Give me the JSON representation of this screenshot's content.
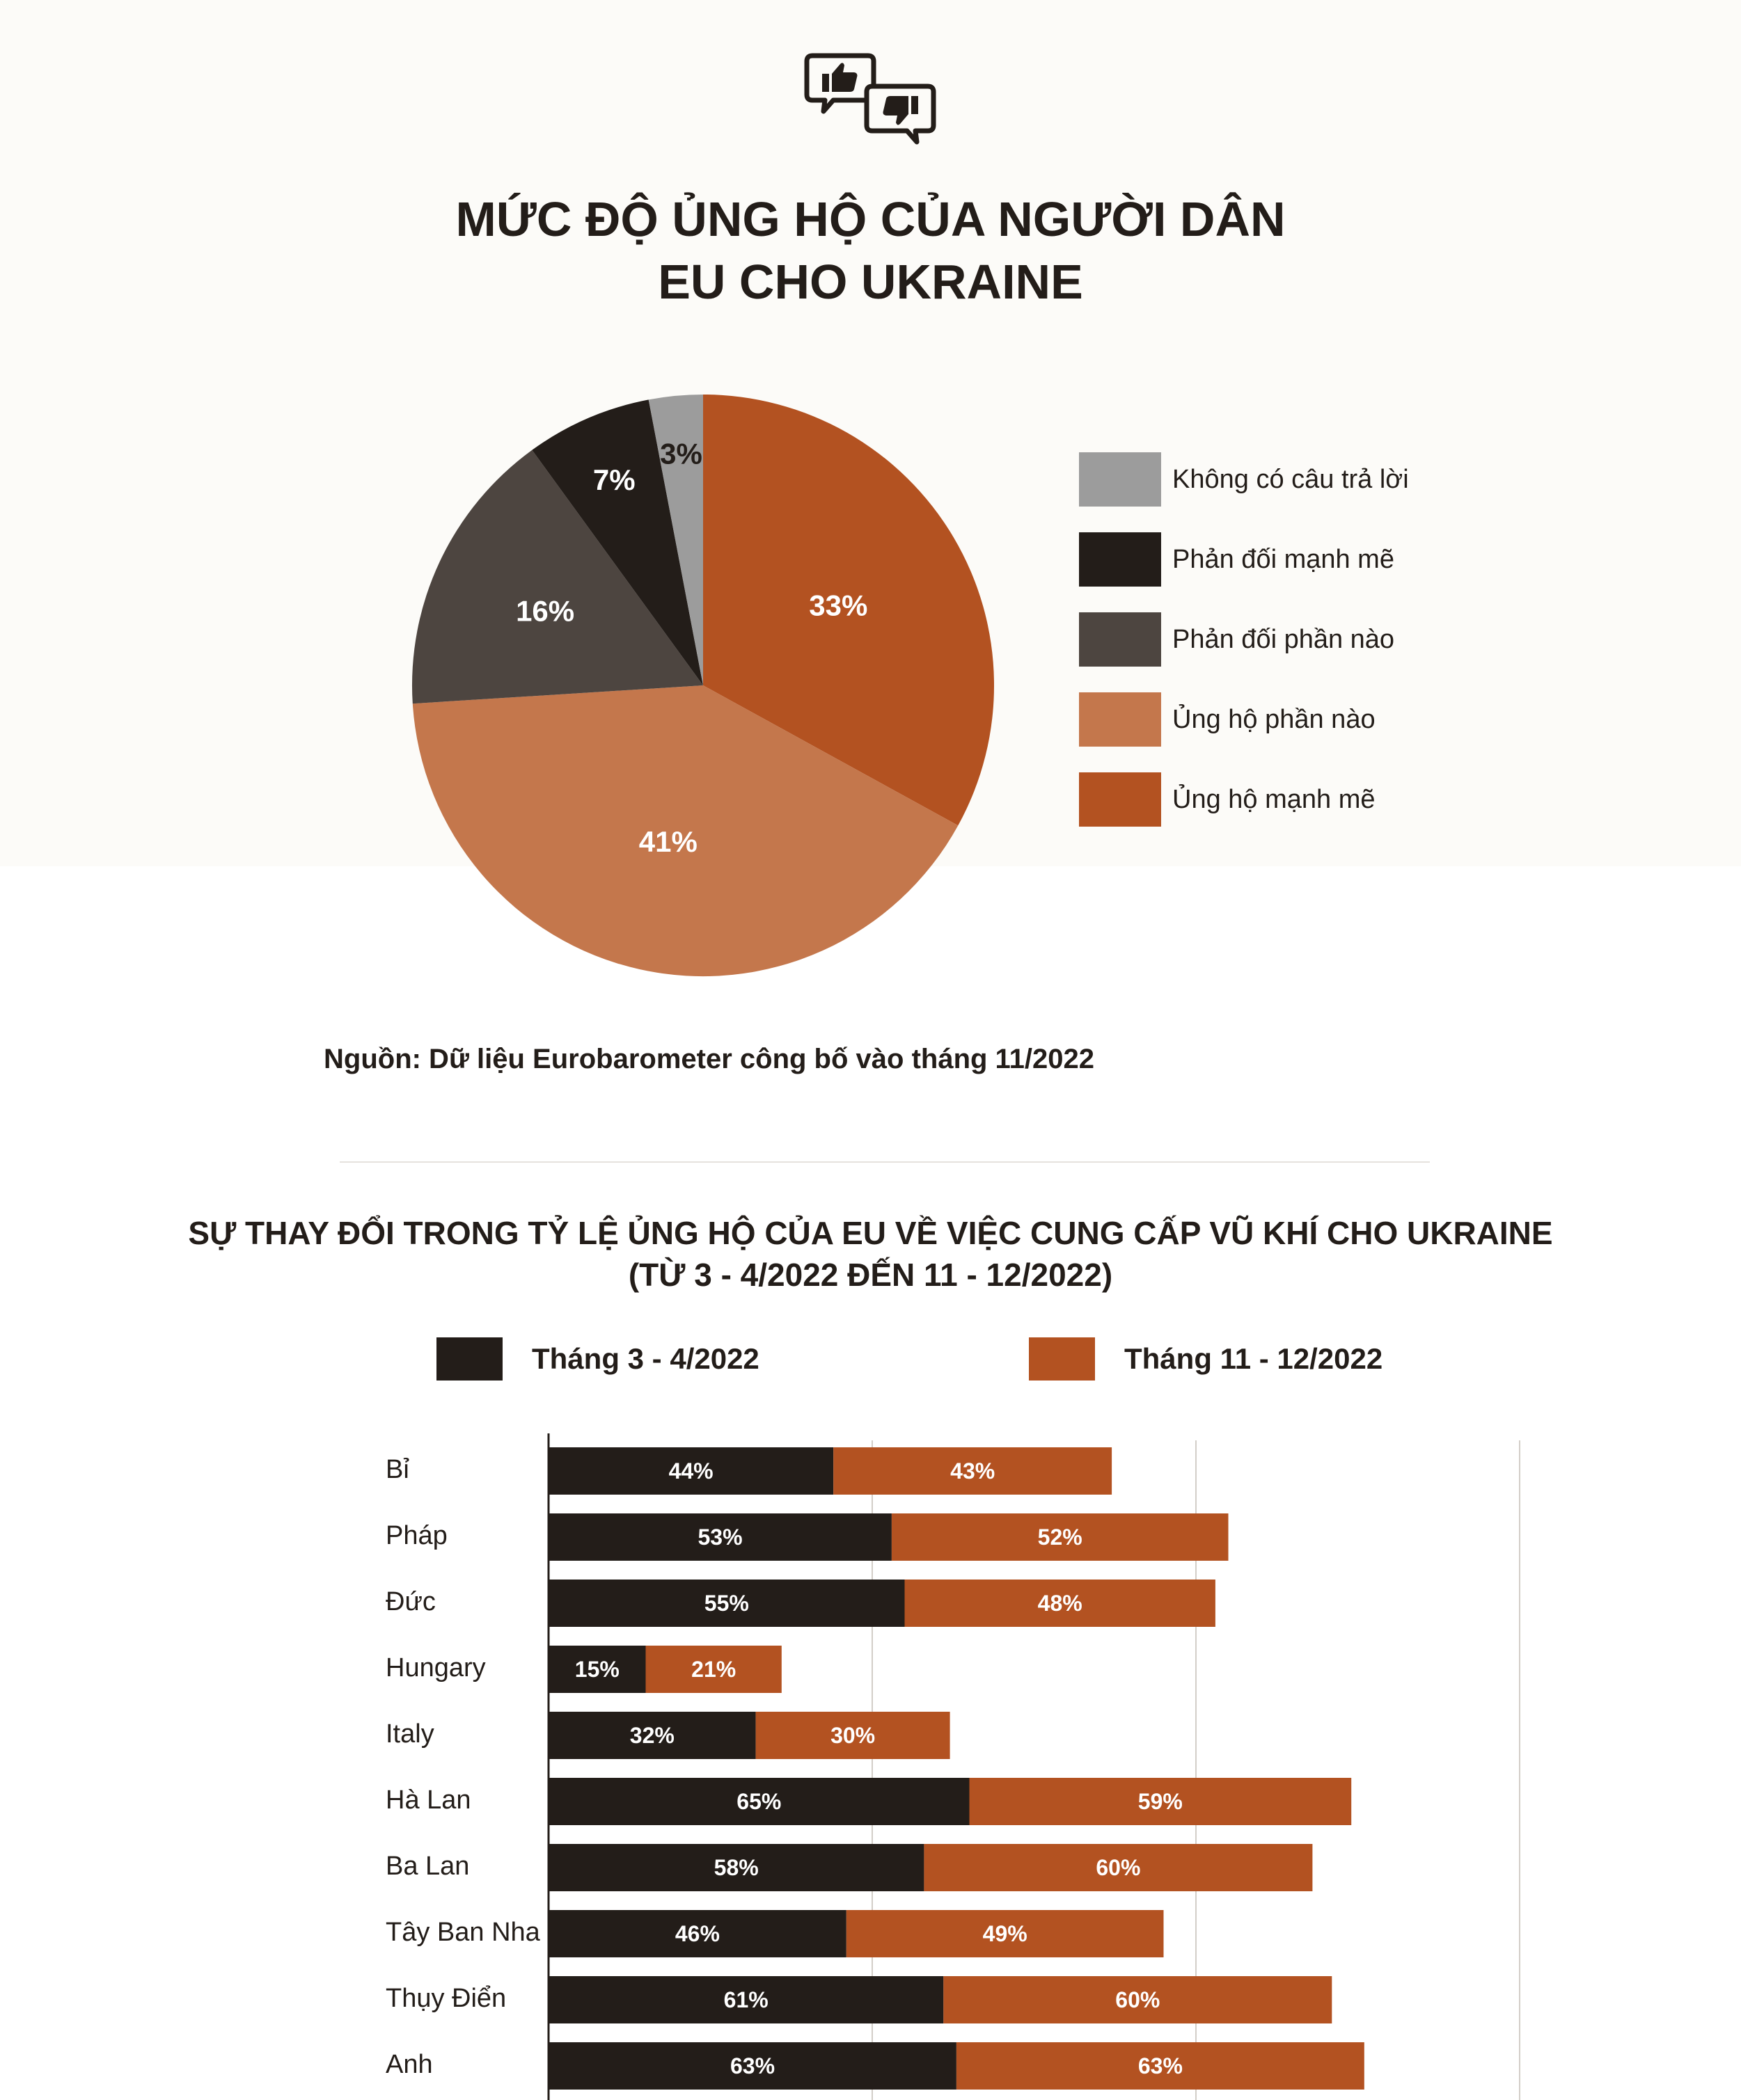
{
  "title": {
    "line1": "MỨC ĐỘ ỦNG HỘ CỦA NGƯỜI DÂN",
    "line2": "EU CHO UKRAINE"
  },
  "icons": [
    "thumbs-up-speech-bubble-icon",
    "thumbs-down-speech-bubble-icon"
  ],
  "source": "Nguồn: Dữ liệu Eurobarometer công bố vào tháng 11/2022",
  "bar_title": {
    "line1": "SỰ THAY ĐỔI TRONG TỶ LỆ ỦNG HỘ CỦA EU VỀ VIỆC CUNG CẤP VŨ KHÍ CHO UKRAINE",
    "line2": "(TỪ 3 - 4/2022 ĐẾN 11 - 12/2022)"
  },
  "colors": {
    "strong_support": "#b35221",
    "some_support": "#c4774c",
    "some_oppose": "#4d4540",
    "strong_oppose": "#231d19",
    "no_answer": "#9c9c9c",
    "period1": "#231d19",
    "period2": "#b35221"
  },
  "chart_data": [
    {
      "type": "pie",
      "title": "MỨC ĐỘ ỦNG HỘ CỦA NGƯỜI DÂN EU CHO UKRAINE",
      "legend_position": "right",
      "legend": [
        "Không có câu trả lời",
        "Phản đối mạnh mẽ",
        "Phản đối phần nào",
        "Ủng hộ phần nào",
        "Ủng hộ mạnh mẽ"
      ],
      "slices": [
        {
          "name": "Ủng hộ mạnh mẽ",
          "value": 33,
          "label": "33%",
          "color": "#b35221"
        },
        {
          "name": "Ủng hộ phần nào",
          "value": 41,
          "label": "41%",
          "color": "#c4774c"
        },
        {
          "name": "Phản đối phần nào",
          "value": 16,
          "label": "16%",
          "color": "#4d4540"
        },
        {
          "name": "Phản đối mạnh mẽ",
          "value": 7,
          "label": "7%",
          "color": "#231d19"
        },
        {
          "name": "Không có câu trả lời",
          "value": 3,
          "label": "3%",
          "color": "#9c9c9c"
        }
      ]
    },
    {
      "type": "bar",
      "orientation": "horizontal",
      "stacked": true,
      "title": "SỰ THAY ĐỔI TRONG TỶ LỆ ỦNG HỘ CỦA EU VỀ VIỆC CUNG CẤP VŨ KHÍ CHO UKRAINE (TỪ 3 - 4/2022 ĐẾN 11 - 12/2022)",
      "legend_position": "top",
      "grid": true,
      "xlim": [
        0,
        150
      ],
      "categories": [
        "Bỉ",
        "Pháp",
        "Đức",
        "Hungary",
        "Italy",
        "Hà Lan",
        "Ba Lan",
        "Tây Ban Nha",
        "Thụy Điển",
        "Anh"
      ],
      "series": [
        {
          "name": "Tháng 3 - 4/2022",
          "color": "#231d19",
          "values": [
            44,
            53,
            55,
            15,
            32,
            65,
            58,
            46,
            61,
            63
          ],
          "labels": [
            "44%",
            "53%",
            "55%",
            "15%",
            "32%",
            "65%",
            "58%",
            "46%",
            "61%",
            "63%"
          ]
        },
        {
          "name": "Tháng 11 - 12/2022",
          "color": "#b35221",
          "values": [
            43,
            52,
            48,
            21,
            30,
            59,
            60,
            49,
            60,
            63
          ],
          "labels": [
            "43%",
            "52%",
            "48%",
            "21%",
            "30%",
            "59%",
            "60%",
            "49%",
            "60%",
            "63%"
          ]
        }
      ]
    }
  ]
}
